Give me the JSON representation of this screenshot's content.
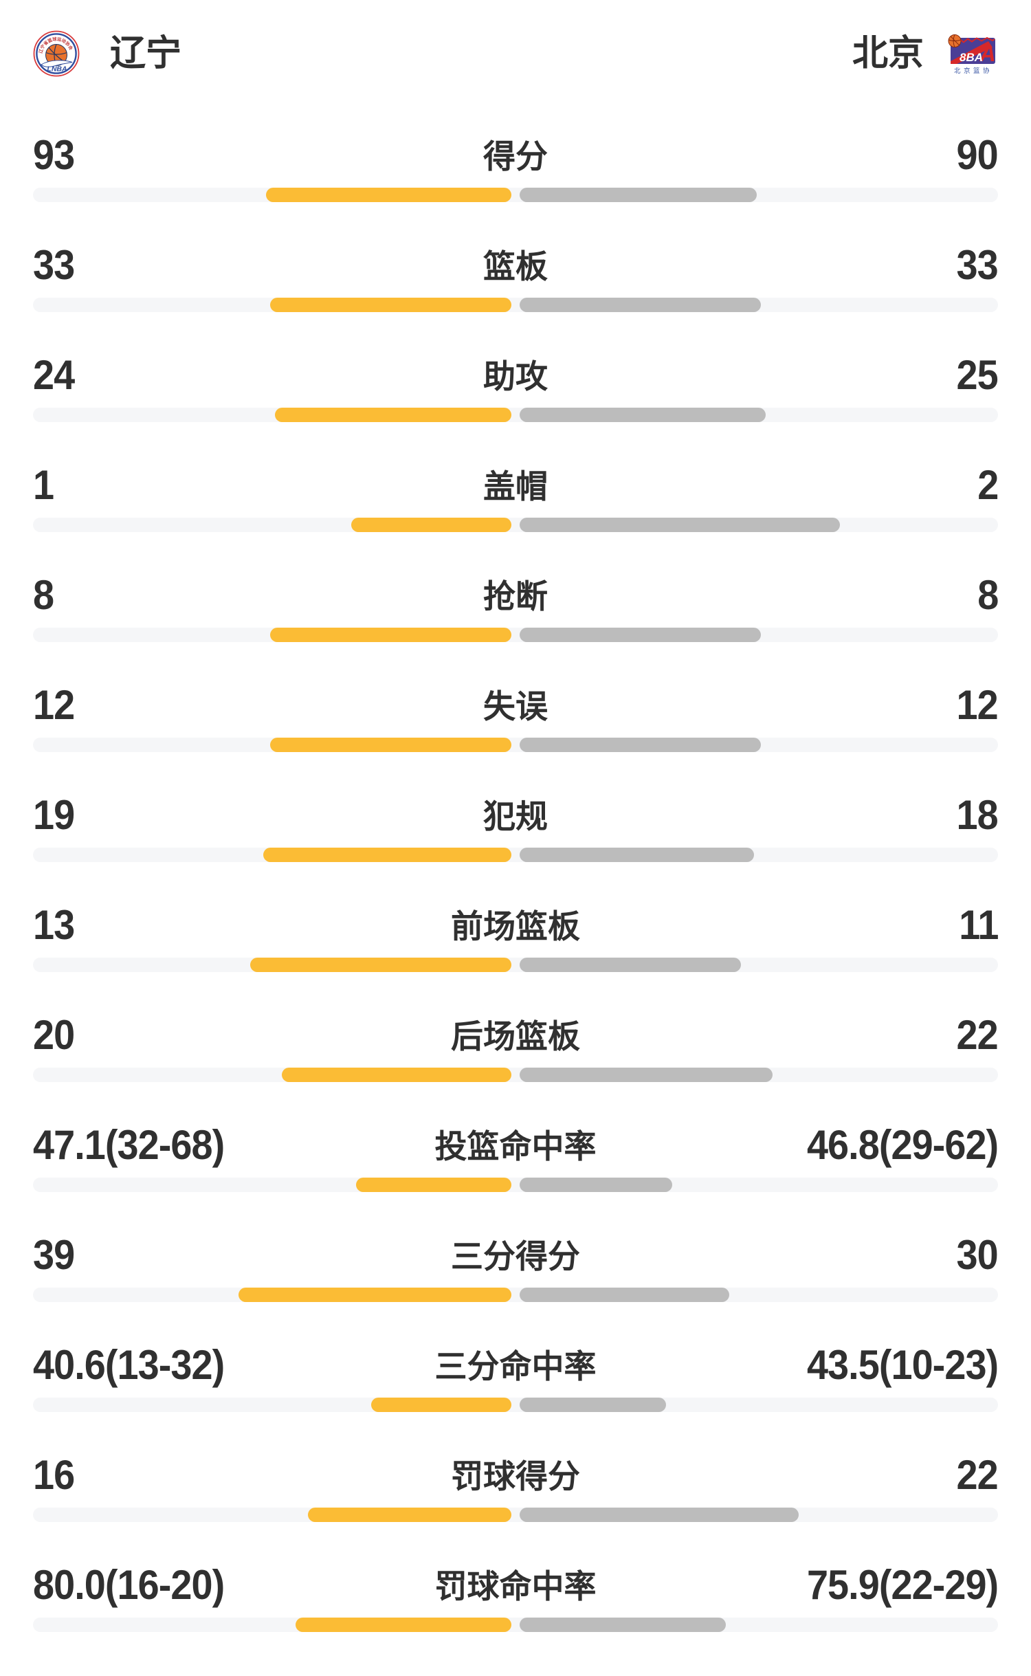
{
  "page": {
    "background": "#FFFFFF"
  },
  "header": {
    "home": {
      "name": "辽宁",
      "logo_text": "LNBA",
      "logo_arc_text": "辽宁省篮球运动协会"
    },
    "away": {
      "name": "北京",
      "logo_text": "8BA",
      "logo_caption": "北京篮协"
    }
  },
  "colors": {
    "home_bar": "#FBBC35",
    "away_bar": "#BCBCBC",
    "bar_track": "#F5F6F8",
    "text": "#303030",
    "basketball": "#E8722D",
    "logo_red": "#D6282A",
    "logo_blue": "#2F4D9E",
    "logo_purple": "#4A3E96"
  },
  "stats": [
    {
      "label": "得分",
      "home": "93",
      "away": "90",
      "home_bar_pct": 25.4,
      "away_bar_pct": 24.6
    },
    {
      "label": "篮板",
      "home": "33",
      "away": "33",
      "home_bar_pct": 25.0,
      "away_bar_pct": 25.0
    },
    {
      "label": "助攻",
      "home": "24",
      "away": "25",
      "home_bar_pct": 24.5,
      "away_bar_pct": 25.5
    },
    {
      "label": "盖帽",
      "home": "1",
      "away": "2",
      "home_bar_pct": 16.6,
      "away_bar_pct": 33.2
    },
    {
      "label": "抢断",
      "home": "8",
      "away": "8",
      "home_bar_pct": 25.0,
      "away_bar_pct": 25.0
    },
    {
      "label": "失误",
      "home": "12",
      "away": "12",
      "home_bar_pct": 25.0,
      "away_bar_pct": 25.0
    },
    {
      "label": "犯规",
      "home": "19",
      "away": "18",
      "home_bar_pct": 25.7,
      "away_bar_pct": 24.3
    },
    {
      "label": "前场篮板",
      "home": "13",
      "away": "11",
      "home_bar_pct": 27.1,
      "away_bar_pct": 22.9
    },
    {
      "label": "后场篮板",
      "home": "20",
      "away": "22",
      "home_bar_pct": 23.8,
      "away_bar_pct": 26.2
    },
    {
      "label": "投篮命中率",
      "home": "47.1(32-68)",
      "away": "46.8(29-62)",
      "home_bar_pct": 16.1,
      "away_bar_pct": 15.8
    },
    {
      "label": "三分得分",
      "home": "39",
      "away": "30",
      "home_bar_pct": 28.3,
      "away_bar_pct": 21.7
    },
    {
      "label": "三分命中率",
      "home": "40.6(13-32)",
      "away": "43.5(10-23)",
      "home_bar_pct": 14.5,
      "away_bar_pct": 15.2
    },
    {
      "label": "罚球得分",
      "home": "16",
      "away": "22",
      "home_bar_pct": 21.1,
      "away_bar_pct": 28.9
    },
    {
      "label": "罚球命中率",
      "home": "80.0(16-20)",
      "away": "75.9(22-29)",
      "home_bar_pct": 22.4,
      "away_bar_pct": 21.4
    }
  ],
  "chart_data": {
    "type": "bar",
    "orientation": "horizontal-paired-from-center",
    "categories": [
      "得分",
      "篮板",
      "助攻",
      "盖帽",
      "抢断",
      "失误",
      "犯规",
      "前场篮板",
      "后场篮板",
      "投篮命中率",
      "三分得分",
      "三分命中率",
      "罚球得分",
      "罚球命中率"
    ],
    "series": [
      {
        "name": "辽宁",
        "color": "#FBBC35",
        "values": [
          93,
          33,
          24,
          1,
          8,
          12,
          19,
          13,
          20,
          47.1,
          39,
          40.6,
          16,
          80.0
        ],
        "display": [
          "93",
          "33",
          "24",
          "1",
          "8",
          "12",
          "19",
          "13",
          "20",
          "47.1(32-68)",
          "39",
          "40.6(13-32)",
          "16",
          "80.0(16-20)"
        ]
      },
      {
        "name": "北京",
        "color": "#BCBCBC",
        "values": [
          90,
          33,
          25,
          2,
          8,
          12,
          18,
          11,
          22,
          46.8,
          30,
          43.5,
          22,
          75.9
        ],
        "display": [
          "90",
          "33",
          "25",
          "2",
          "8",
          "12",
          "18",
          "11",
          "22",
          "46.8(29-62)",
          "30",
          "43.5(10-23)",
          "22",
          "75.9(22-29)"
        ]
      }
    ],
    "legend_position": "header",
    "grid": false
  }
}
